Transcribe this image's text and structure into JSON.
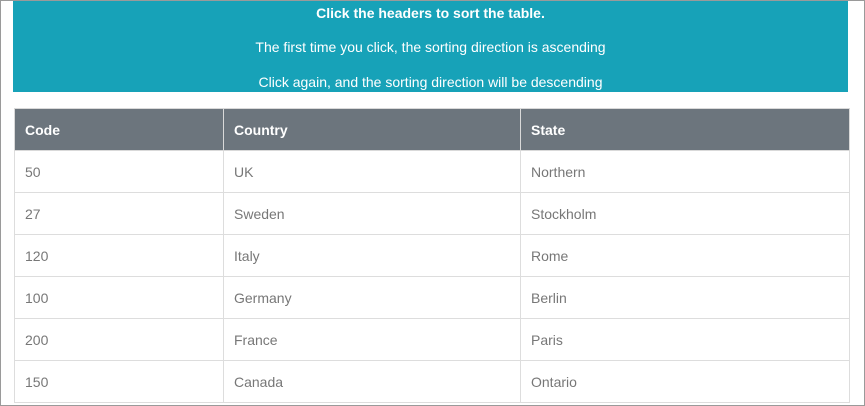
{
  "banner": {
    "line1": "Click the headers to sort the table.",
    "line2": "The first time you click, the sorting direction is ascending",
    "line3": "Click again, and the sorting direction will be descending",
    "background": "#17a2b8"
  },
  "table": {
    "header_background": "#6c757d",
    "headers": [
      "Code",
      "Country",
      "State"
    ],
    "rows": [
      [
        "50",
        "UK",
        "Northern"
      ],
      [
        "27",
        "Sweden",
        "Stockholm"
      ],
      [
        "120",
        "Italy",
        "Rome"
      ],
      [
        "100",
        "Germany",
        "Berlin"
      ],
      [
        "200",
        "France",
        "Paris"
      ],
      [
        "150",
        "Canada",
        "Ontario"
      ]
    ]
  }
}
